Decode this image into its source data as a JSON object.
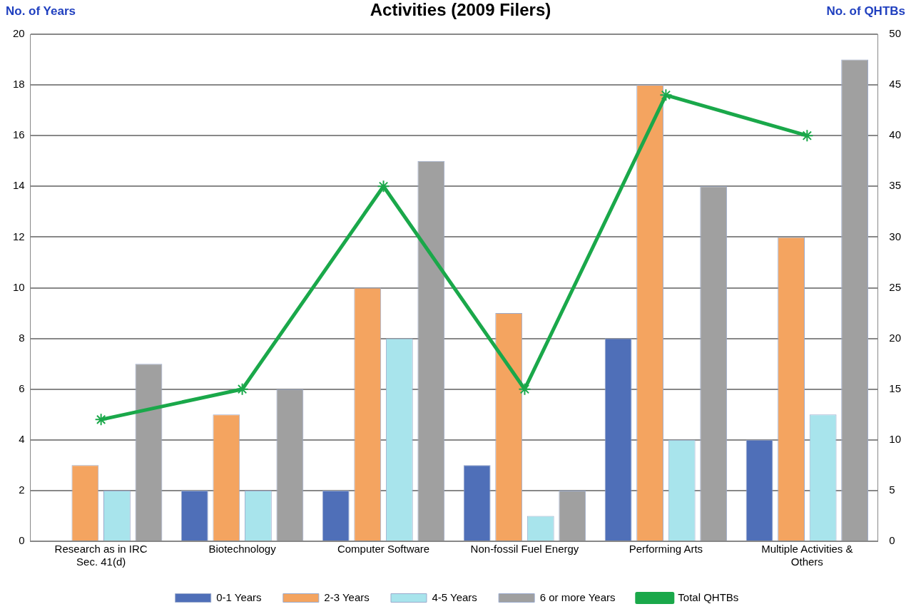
{
  "chart_data": {
    "type": "bar",
    "title": "Activities (2009 Filers)",
    "ylabel": "No. of Years",
    "y2label": "No. of QHTBs",
    "categories": [
      "Research as in IRC Sec. 41(d)",
      "Biotechnology",
      "Computer Software",
      "Non-fossil Fuel Energy",
      "Performing Arts",
      "Multiple Activities & Others"
    ],
    "series": [
      {
        "name": "0-1 Years",
        "color": "#4f6fb8",
        "values": [
          0,
          2,
          2,
          3,
          8,
          4
        ]
      },
      {
        "name": "2-3 Years",
        "color": "#f4a460",
        "values": [
          3,
          5,
          10,
          9,
          18,
          12
        ]
      },
      {
        "name": "4-5 Years",
        "color": "#a8e4ec",
        "values": [
          2,
          2,
          8,
          1,
          4,
          5
        ]
      },
      {
        "name": "6 or more Years",
        "color": "#a0a0a0",
        "values": [
          7,
          6,
          15,
          2,
          14,
          19
        ]
      },
      {
        "name": "Total QHTBs",
        "type": "line",
        "axis": "y2",
        "color": "#1aa84a",
        "marker": "cross",
        "values": [
          12,
          15,
          35,
          15,
          44,
          40
        ]
      }
    ],
    "ylim": [
      0,
      20
    ],
    "yticks": [
      0,
      2,
      4,
      6,
      8,
      10,
      12,
      14,
      16,
      18,
      20
    ],
    "y2lim": [
      0,
      50
    ],
    "y2ticks": [
      0,
      5,
      10,
      15,
      20,
      25,
      30,
      35,
      40,
      45,
      50
    ],
    "grid": "y",
    "legend": "bottom"
  }
}
